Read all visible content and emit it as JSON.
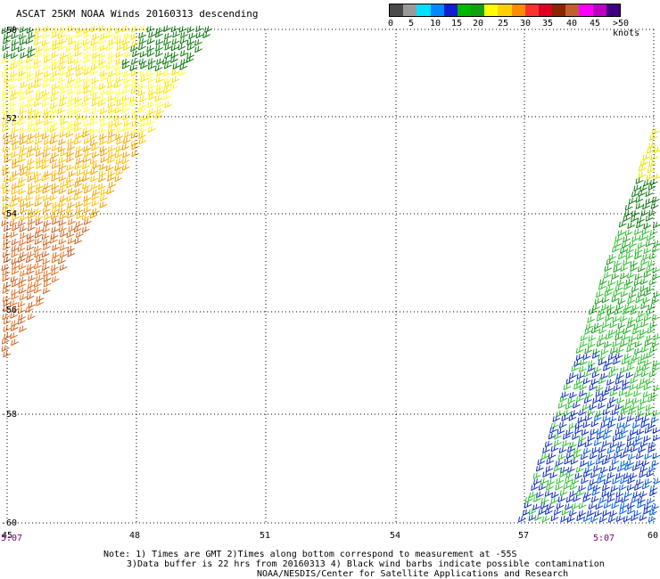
{
  "title": "ASCAT 25KM NOAA Winds 20160313 descending",
  "legend": {
    "colors": [
      "#4a4a4a",
      "#9a9a9a",
      "#00e0ff",
      "#0088ff",
      "#1020d0",
      "#00b800",
      "#10a010",
      "#ffff00",
      "#ffd000",
      "#ff8c00",
      "#ff3030",
      "#e00020",
      "#8b2500",
      "#c06030",
      "#ff00ff",
      "#c000c0",
      "#400080"
    ],
    "labels": [
      "0",
      "5",
      "10",
      "15",
      "20",
      "25",
      "30",
      "35",
      "40",
      "45",
      ">50 knots"
    ]
  },
  "axes": {
    "x_ticks": [
      "45",
      "48",
      "51",
      "54",
      "57",
      "60"
    ],
    "y_ticks": [
      "-50",
      "-52",
      "-54",
      "-56",
      "-58",
      "-60"
    ]
  },
  "times": {
    "left": "5:07",
    "right": "5:07"
  },
  "notes": {
    "line1": "Note: 1) Times are GMT 2)Times along bottom correspond to measurement at -55S",
    "line2": "3)Data buffer is 22 hrs from 20160313 4) Black wind barbs indicate possible contamination",
    "line3": "NOAA/NESDIS/Center for Satellite Applications and Research"
  }
}
